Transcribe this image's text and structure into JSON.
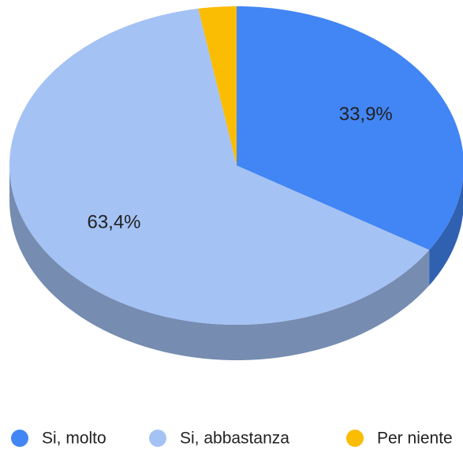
{
  "chart_data": {
    "type": "pie",
    "categories": [
      "Si, molto",
      "Si, abbastanza",
      "Per niente"
    ],
    "values": [
      33.9,
      63.4,
      2.7
    ],
    "value_labels": [
      "33,9%",
      "63,4%",
      null
    ],
    "colors": [
      "#4285f4",
      "#a4c2f4",
      "#fbbc04"
    ],
    "legend": "bottom"
  }
}
